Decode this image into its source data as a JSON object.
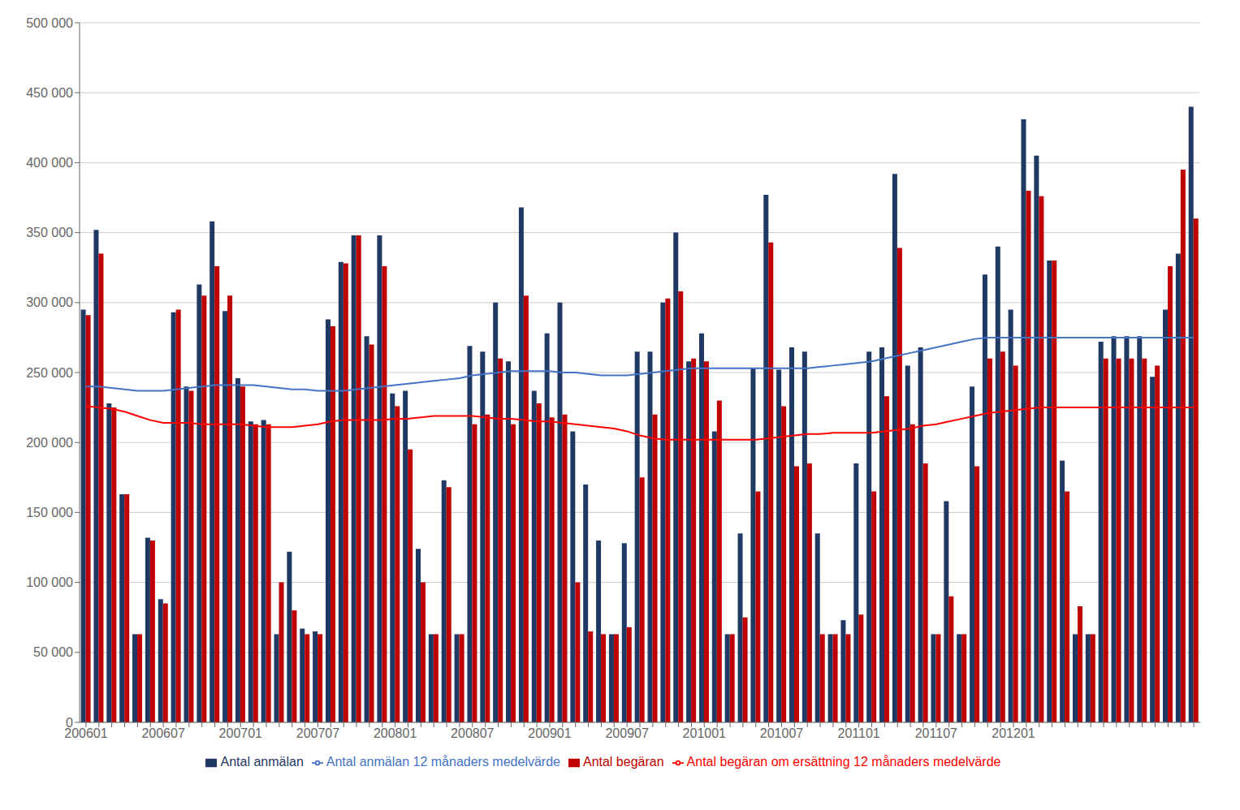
{
  "chart_data": {
    "type": "bar",
    "categories": [
      "200601",
      null,
      null,
      null,
      null,
      null,
      "200607",
      null,
      null,
      null,
      null,
      null,
      "200701",
      null,
      null,
      null,
      null,
      null,
      "200707",
      null,
      null,
      null,
      null,
      null,
      "200801",
      null,
      null,
      null,
      null,
      null,
      "200807",
      null,
      null,
      null,
      null,
      null,
      "200901",
      null,
      null,
      null,
      null,
      null,
      "200907",
      null,
      null,
      null,
      null,
      null,
      "201001",
      null,
      null,
      null,
      null,
      null,
      "201007",
      null,
      null,
      null,
      null,
      null,
      "201101",
      null,
      null,
      null,
      null,
      null,
      "201107",
      null,
      null,
      null,
      null,
      null,
      "201201",
      null,
      null,
      null,
      null,
      null,
      null,
      null,
      null,
      null,
      null,
      null,
      null,
      null,
      null
    ],
    "ylim": [
      0,
      500000
    ],
    "yticks": [
      0,
      {
        "value": 50000,
        "label": "50 000"
      },
      {
        "value": 100000,
        "label": "100 000"
      },
      {
        "value": 150000,
        "label": "150 000"
      },
      {
        "value": 200000,
        "label": "200 000"
      },
      {
        "value": 250000,
        "label": "250 000"
      },
      {
        "value": 300000,
        "label": "300 000"
      },
      {
        "value": 350000,
        "label": "350 000"
      },
      {
        "value": 400000,
        "label": "400 000"
      },
      {
        "value": 450000,
        "label": "450 000"
      },
      {
        "value": 500000,
        "label": "500 000"
      }
    ],
    "grid": true,
    "legend": "bottom",
    "series": [
      {
        "name": "Antal anmälan",
        "type": "bar",
        "color": "#1F3864",
        "values": [
          295000,
          352000,
          228000,
          163000,
          63000,
          132000,
          88000,
          293000,
          240000,
          313000,
          358000,
          294000,
          246000,
          215000,
          216000,
          63000,
          122000,
          67000,
          65000,
          288000,
          329000,
          348000,
          276000,
          348000,
          235000,
          237000,
          124000,
          63000,
          173000,
          63000,
          269000,
          265000,
          300000,
          258000,
          368000,
          237000,
          278000,
          300000,
          208000,
          170000,
          130000,
          63000,
          128000,
          265000,
          265000,
          300000,
          350000,
          258000,
          278000,
          208000,
          63000,
          135000,
          253000,
          377000,
          252000,
          268000,
          265000,
          135000,
          63000,
          73000,
          185000,
          265000,
          268000,
          392000,
          255000,
          268000,
          63000,
          158000,
          63000,
          240000,
          320000,
          340000,
          295000,
          431000,
          405000,
          330000,
          187000,
          63000,
          63000,
          272000,
          276000,
          276000,
          276000,
          247000,
          295000,
          335000,
          440000
        ]
      },
      {
        "name": "Antal begäran",
        "type": "bar",
        "color": "#C00000",
        "values": [
          291000,
          335000,
          225000,
          163000,
          63000,
          130000,
          85000,
          295000,
          237000,
          305000,
          326000,
          305000,
          240000,
          213000,
          213000,
          100000,
          80000,
          63000,
          63000,
          283000,
          328000,
          348000,
          270000,
          326000,
          226000,
          195000,
          100000,
          63000,
          168000,
          63000,
          213000,
          220000,
          260000,
          213000,
          305000,
          228000,
          218000,
          220000,
          100000,
          65000,
          63000,
          63000,
          68000,
          175000,
          220000,
          303000,
          308000,
          260000,
          258000,
          230000,
          63000,
          75000,
          165000,
          343000,
          226000,
          183000,
          185000,
          63000,
          63000,
          63000,
          77000,
          165000,
          233000,
          339000,
          213000,
          185000,
          63000,
          90000,
          63000,
          183000,
          260000,
          265000,
          255000,
          380000,
          376000,
          330000,
          165000,
          83000,
          63000,
          260000,
          260000,
          260000,
          260000,
          255000,
          326000,
          395000,
          360000
        ]
      },
      {
        "name": "Antal anmälan 12 månaders medelvärde",
        "type": "line",
        "color": "#4472C4",
        "values": [
          240000,
          240000,
          239000,
          238000,
          237000,
          237000,
          237000,
          238000,
          239000,
          240000,
          241000,
          241000,
          241000,
          241000,
          240000,
          239000,
          238000,
          238000,
          237000,
          237000,
          237000,
          238000,
          239000,
          240000,
          241000,
          242000,
          243000,
          244000,
          245000,
          246000,
          248000,
          249000,
          250000,
          251000,
          251000,
          251000,
          251000,
          250000,
          250000,
          249000,
          248000,
          248000,
          248000,
          249000,
          250000,
          251000,
          252000,
          253000,
          253000,
          253000,
          253000,
          253000,
          253000,
          253000,
          253000,
          253000,
          253000,
          254000,
          255000,
          256000,
          257000,
          258000,
          260000,
          262000,
          264000,
          266000,
          268000,
          270000,
          272000,
          274000,
          275000,
          275000,
          275000,
          275000,
          275000,
          275000,
          275000,
          275000,
          275000,
          275000,
          275000,
          275000,
          275000,
          275000,
          275000,
          275000,
          275000
        ]
      },
      {
        "name": "Antal begäran om ersättning 12 månaders medelvärde",
        "type": "line",
        "color": "#FF0000",
        "values": [
          226000,
          225000,
          224000,
          222000,
          219000,
          216000,
          214000,
          214000,
          214000,
          213000,
          213000,
          213000,
          213000,
          212000,
          211000,
          211000,
          211000,
          212000,
          213000,
          215000,
          216000,
          216000,
          216000,
          216000,
          217000,
          217000,
          218000,
          219000,
          219000,
          219000,
          219000,
          218000,
          217000,
          217000,
          216000,
          215000,
          215000,
          214000,
          213000,
          212000,
          211000,
          210000,
          208000,
          205000,
          203000,
          202000,
          202000,
          202000,
          202000,
          202000,
          202000,
          202000,
          202000,
          203000,
          204000,
          205000,
          206000,
          206000,
          207000,
          207000,
          207000,
          207000,
          208000,
          209000,
          210000,
          212000,
          213000,
          215000,
          217000,
          219000,
          221000,
          222000,
          223000,
          224000,
          225000,
          225000,
          225000,
          225000,
          225000,
          225000,
          225000,
          225000,
          225000,
          225000,
          225000,
          225000,
          225000
        ]
      }
    ]
  }
}
